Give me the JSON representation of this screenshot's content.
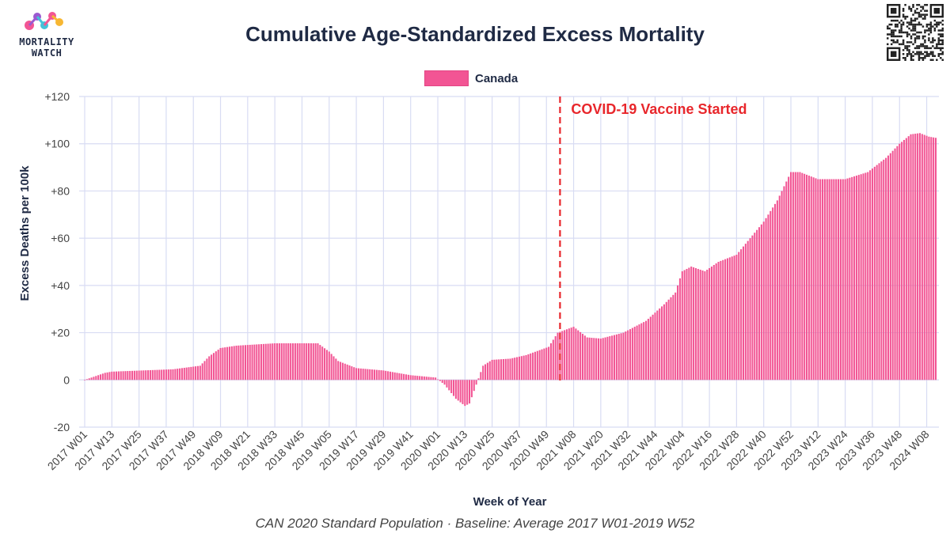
{
  "header": {
    "logo_text_line1": "MORTALITY",
    "logo_text_line2": "WATCH",
    "title": "Cumulative Age-Standardized Excess Mortality"
  },
  "legend": {
    "label": "Canada",
    "color": "#f25594"
  },
  "caption": "CAN 2020 Standard Population · Baseline: Average 2017 W01-2019 W52",
  "chart_data": {
    "type": "bar",
    "title": "Cumulative Age-Standardized Excess Mortality",
    "xlabel": "Week of Year",
    "ylabel": "Excess Deaths per 100k",
    "ylim": [
      -20,
      120
    ],
    "yticks": [
      -20,
      0,
      20,
      40,
      60,
      80,
      100,
      120
    ],
    "ytick_labels": [
      "-20",
      "0",
      "+20",
      "+40",
      "+60",
      "+80",
      "+100",
      "+120"
    ],
    "xtick_labels": [
      "2017 W01",
      "2017 W13",
      "2017 W25",
      "2017 W37",
      "2017 W49",
      "2018 W09",
      "2018 W21",
      "2018 W33",
      "2018 W45",
      "2019 W05",
      "2019 W17",
      "2019 W29",
      "2019 W41",
      "2020 W01",
      "2020 W13",
      "2020 W25",
      "2020 W37",
      "2020 W49",
      "2021 W08",
      "2021 W20",
      "2021 W32",
      "2021 W44",
      "2022 W04",
      "2022 W16",
      "2022 W28",
      "2022 W40",
      "2022 W52",
      "2023 W12",
      "2023 W24",
      "2023 W36",
      "2023 W48",
      "2024 W08"
    ],
    "grid": true,
    "bar_color": "#f25594",
    "series": [
      {
        "name": "Canada",
        "keypoints": [
          [
            "2017 W01",
            0
          ],
          [
            "2017 W10",
            3
          ],
          [
            "2017 W13",
            3.5
          ],
          [
            "2017 W40",
            4.5
          ],
          [
            "2017 W52",
            6
          ],
          [
            "2018 W04",
            10
          ],
          [
            "2018 W09",
            13.5
          ],
          [
            "2018 W16",
            14.5
          ],
          [
            "2018 W33",
            15.5
          ],
          [
            "2018 W52",
            15.5
          ],
          [
            "2019 W05",
            12
          ],
          [
            "2019 W09",
            8
          ],
          [
            "2019 W17",
            5
          ],
          [
            "2019 W29",
            4
          ],
          [
            "2019 W41",
            2
          ],
          [
            "2019 W52",
            1
          ],
          [
            "2020 W04",
            -2
          ],
          [
            "2020 W09",
            -8
          ],
          [
            "2020 W13",
            -11
          ],
          [
            "2020 W15",
            -10
          ],
          [
            "2020 W18",
            -2
          ],
          [
            "2020 W21",
            6
          ],
          [
            "2020 W25",
            8.5
          ],
          [
            "2020 W33",
            9
          ],
          [
            "2020 W40",
            10.5
          ],
          [
            "2020 W50",
            14
          ],
          [
            "2021 W01",
            20
          ],
          [
            "2021 W08",
            22.5
          ],
          [
            "2021 W14",
            18
          ],
          [
            "2021 W20",
            17.5
          ],
          [
            "2021 W30",
            20
          ],
          [
            "2021 W40",
            25
          ],
          [
            "2021 W48",
            32
          ],
          [
            "2022 W01",
            37
          ],
          [
            "2022 W04",
            46
          ],
          [
            "2022 W08",
            48
          ],
          [
            "2022 W14",
            46
          ],
          [
            "2022 W20",
            50
          ],
          [
            "2022 W28",
            53
          ],
          [
            "2022 W34",
            60
          ],
          [
            "2022 W40",
            67
          ],
          [
            "2022 W46",
            76
          ],
          [
            "2022 W52",
            88
          ],
          [
            "2023 W04",
            88
          ],
          [
            "2023 W12",
            85
          ],
          [
            "2023 W24",
            85
          ],
          [
            "2023 W34",
            88
          ],
          [
            "2023 W42",
            94
          ],
          [
            "2023 W48",
            100
          ],
          [
            "2024 W01",
            104
          ],
          [
            "2024 W05",
            104.5
          ],
          [
            "2024 W09",
            103
          ],
          [
            "2024 W12",
            102.5
          ]
        ]
      }
    ],
    "annotations": [
      {
        "type": "vertical-dashed-line",
        "x": "2021 W02",
        "color": "#e8262b",
        "text": "COVID-19 Vaccine Started"
      }
    ]
  }
}
